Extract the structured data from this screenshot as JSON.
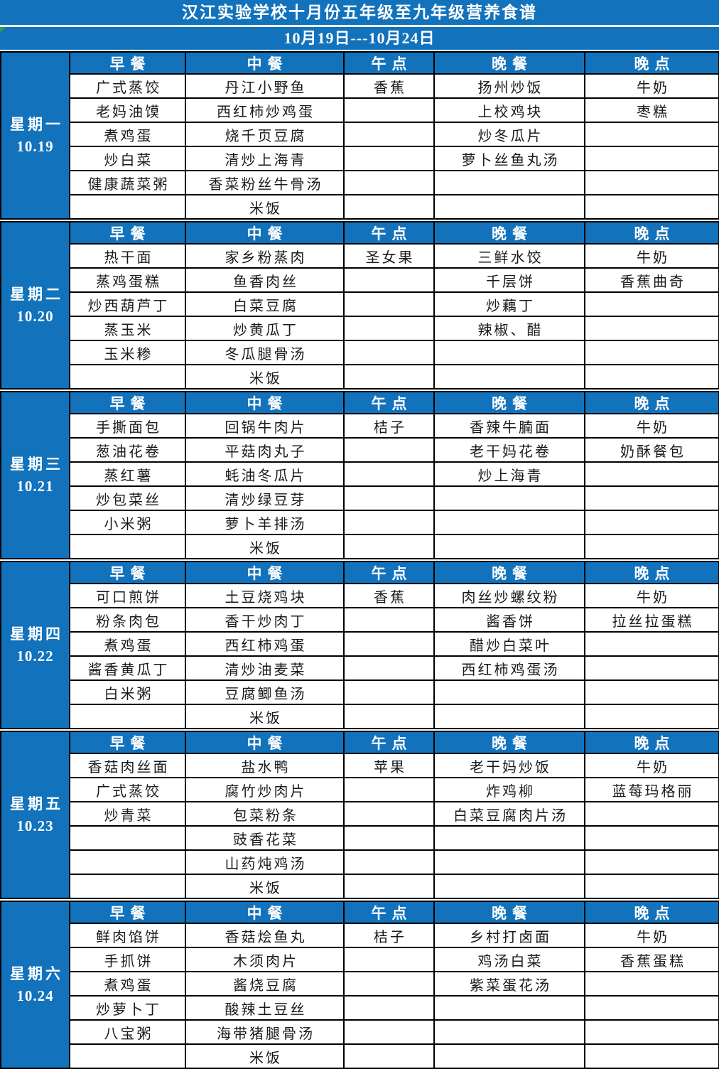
{
  "title": "汉江实验学校十月份五年级至九年级营养食谱",
  "date_range": "10月19日---10月24日",
  "colors": {
    "header_blue": "#1272BC",
    "title_text": "#FFFFFF",
    "cell_text": "#1A1A1A",
    "border": "#000000",
    "marker_green": "#2F9E44",
    "background": "#FFFFFF"
  },
  "columns": [
    {
      "key": "breakfast",
      "label": "早餐"
    },
    {
      "key": "lunch",
      "label": "中餐"
    },
    {
      "key": "afternoon-snack",
      "label": "午点"
    },
    {
      "key": "dinner",
      "label": "晚餐"
    },
    {
      "key": "evening-snack",
      "label": "晚点"
    }
  ],
  "days": [
    {
      "label": "星期一",
      "date": "10.19",
      "rows": [
        [
          "广式蒸饺",
          "丹江小野鱼",
          "香蕉",
          "扬州炒饭",
          "牛奶"
        ],
        [
          "老妈油馍",
          "西红柿炒鸡蛋",
          "",
          "上校鸡块",
          "枣糕"
        ],
        [
          "煮鸡蛋",
          "烧千页豆腐",
          "",
          "炒冬瓜片",
          ""
        ],
        [
          "炒白菜",
          "清炒上海青",
          "",
          "萝卜丝鱼丸汤",
          ""
        ],
        [
          "健康蔬菜粥",
          "香菜粉丝牛骨汤",
          "",
          "",
          ""
        ],
        [
          "",
          "米饭",
          "",
          "",
          ""
        ]
      ]
    },
    {
      "label": "星期二",
      "date": "10.20",
      "rows": [
        [
          "热干面",
          "家乡粉蒸肉",
          "圣女果",
          "三鲜水饺",
          "牛奶"
        ],
        [
          "蒸鸡蛋糕",
          "鱼香肉丝",
          "",
          "千层饼",
          "香蕉曲奇"
        ],
        [
          "炒西葫芦丁",
          "白菜豆腐",
          "",
          "炒藕丁",
          ""
        ],
        [
          "蒸玉米",
          "炒黄瓜丁",
          "",
          "辣椒、醋",
          ""
        ],
        [
          "玉米糁",
          "冬瓜腿骨汤",
          "",
          "",
          ""
        ],
        [
          "",
          "米饭",
          "",
          "",
          ""
        ]
      ]
    },
    {
      "label": "星期三",
      "date": "10.21",
      "rows": [
        [
          "手撕面包",
          "回锅牛肉片",
          "桔子",
          "香辣牛腩面",
          "牛奶"
        ],
        [
          "葱油花卷",
          "平菇肉丸子",
          "",
          "老干妈花卷",
          "奶酥餐包"
        ],
        [
          "蒸红薯",
          "蚝油冬瓜片",
          "",
          "炒上海青",
          ""
        ],
        [
          "炒包菜丝",
          "清炒绿豆芽",
          "",
          "",
          ""
        ],
        [
          "小米粥",
          "萝卜羊排汤",
          "",
          "",
          ""
        ],
        [
          "",
          "米饭",
          "",
          "",
          ""
        ]
      ]
    },
    {
      "label": "星期四",
      "date": "10.22",
      "rows": [
        [
          "可口煎饼",
          "土豆烧鸡块",
          "香蕉",
          "肉丝炒螺纹粉",
          "牛奶"
        ],
        [
          "粉条肉包",
          "香干炒肉丁",
          "",
          "酱香饼",
          "拉丝拉蛋糕"
        ],
        [
          "煮鸡蛋",
          "西红柿鸡蛋",
          "",
          "醋炒白菜叶",
          ""
        ],
        [
          "酱香黄瓜丁",
          "清炒油麦菜",
          "",
          "西红柿鸡蛋汤",
          ""
        ],
        [
          "白米粥",
          "豆腐鲫鱼汤",
          "",
          "",
          ""
        ],
        [
          "",
          "米饭",
          "",
          "",
          ""
        ]
      ]
    },
    {
      "label": "星期五",
      "date": "10.23",
      "rows": [
        [
          "香菇肉丝面",
          "盐水鸭",
          "苹果",
          "老干妈炒饭",
          "牛奶"
        ],
        [
          "广式蒸饺",
          "腐竹炒肉片",
          "",
          "炸鸡柳",
          "蓝莓玛格丽"
        ],
        [
          "炒青菜",
          "包菜粉条",
          "",
          "白菜豆腐肉片汤",
          ""
        ],
        [
          "",
          "豉香花菜",
          "",
          "",
          ""
        ],
        [
          "",
          "山药炖鸡汤",
          "",
          "",
          ""
        ],
        [
          "",
          "米饭",
          "",
          "",
          ""
        ]
      ]
    },
    {
      "label": "星期六",
      "date": "10.24",
      "rows": [
        [
          "鲜肉馅饼",
          "香菇烩鱼丸",
          "桔子",
          "乡村打卤面",
          "牛奶"
        ],
        [
          "手抓饼",
          "木须肉片",
          "",
          "鸡汤白菜",
          "香蕉蛋糕"
        ],
        [
          "煮鸡蛋",
          "酱烧豆腐",
          "",
          "紫菜蛋花汤",
          ""
        ],
        [
          "炒萝卜丁",
          "酸辣土豆丝",
          "",
          "",
          ""
        ],
        [
          "八宝粥",
          "海带猪腿骨汤",
          "",
          "",
          ""
        ],
        [
          "",
          "米饭",
          "",
          "",
          ""
        ]
      ]
    }
  ]
}
